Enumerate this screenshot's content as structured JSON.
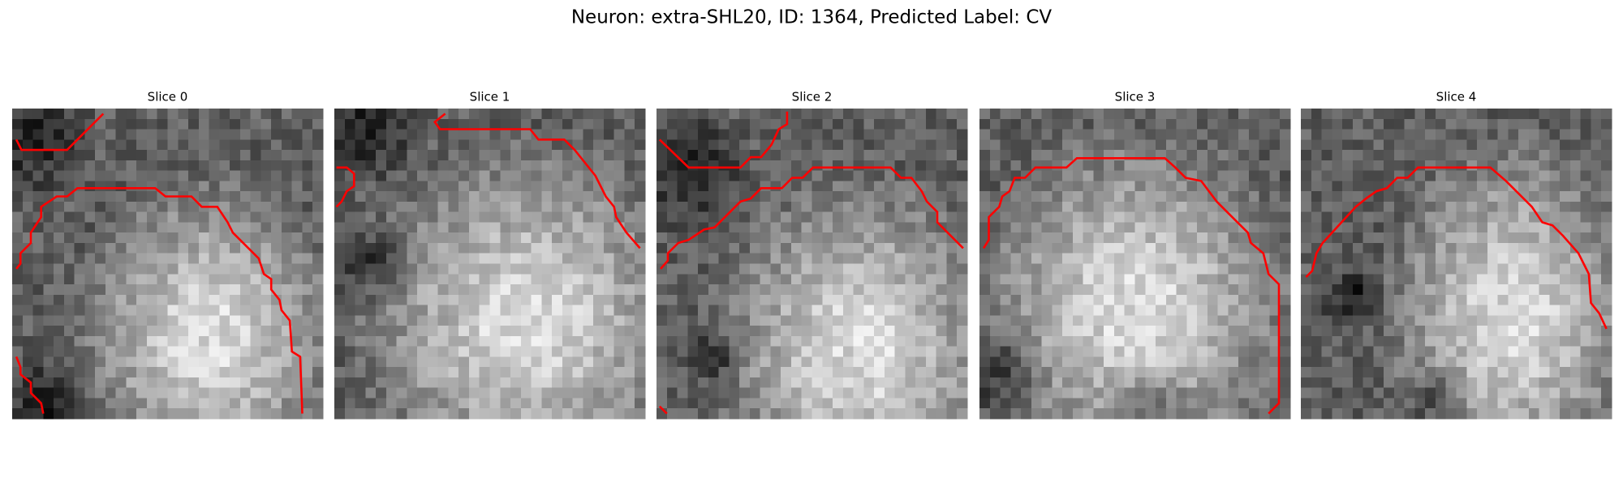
{
  "title": "Neuron: extra-SHL20, ID: 1364, Predicted Label: CV",
  "panels": [
    {
      "title": "Slice 0"
    },
    {
      "title": "Slice 1"
    },
    {
      "title": "Slice 2"
    },
    {
      "title": "Slice 3"
    },
    {
      "title": "Slice 4"
    }
  ]
}
